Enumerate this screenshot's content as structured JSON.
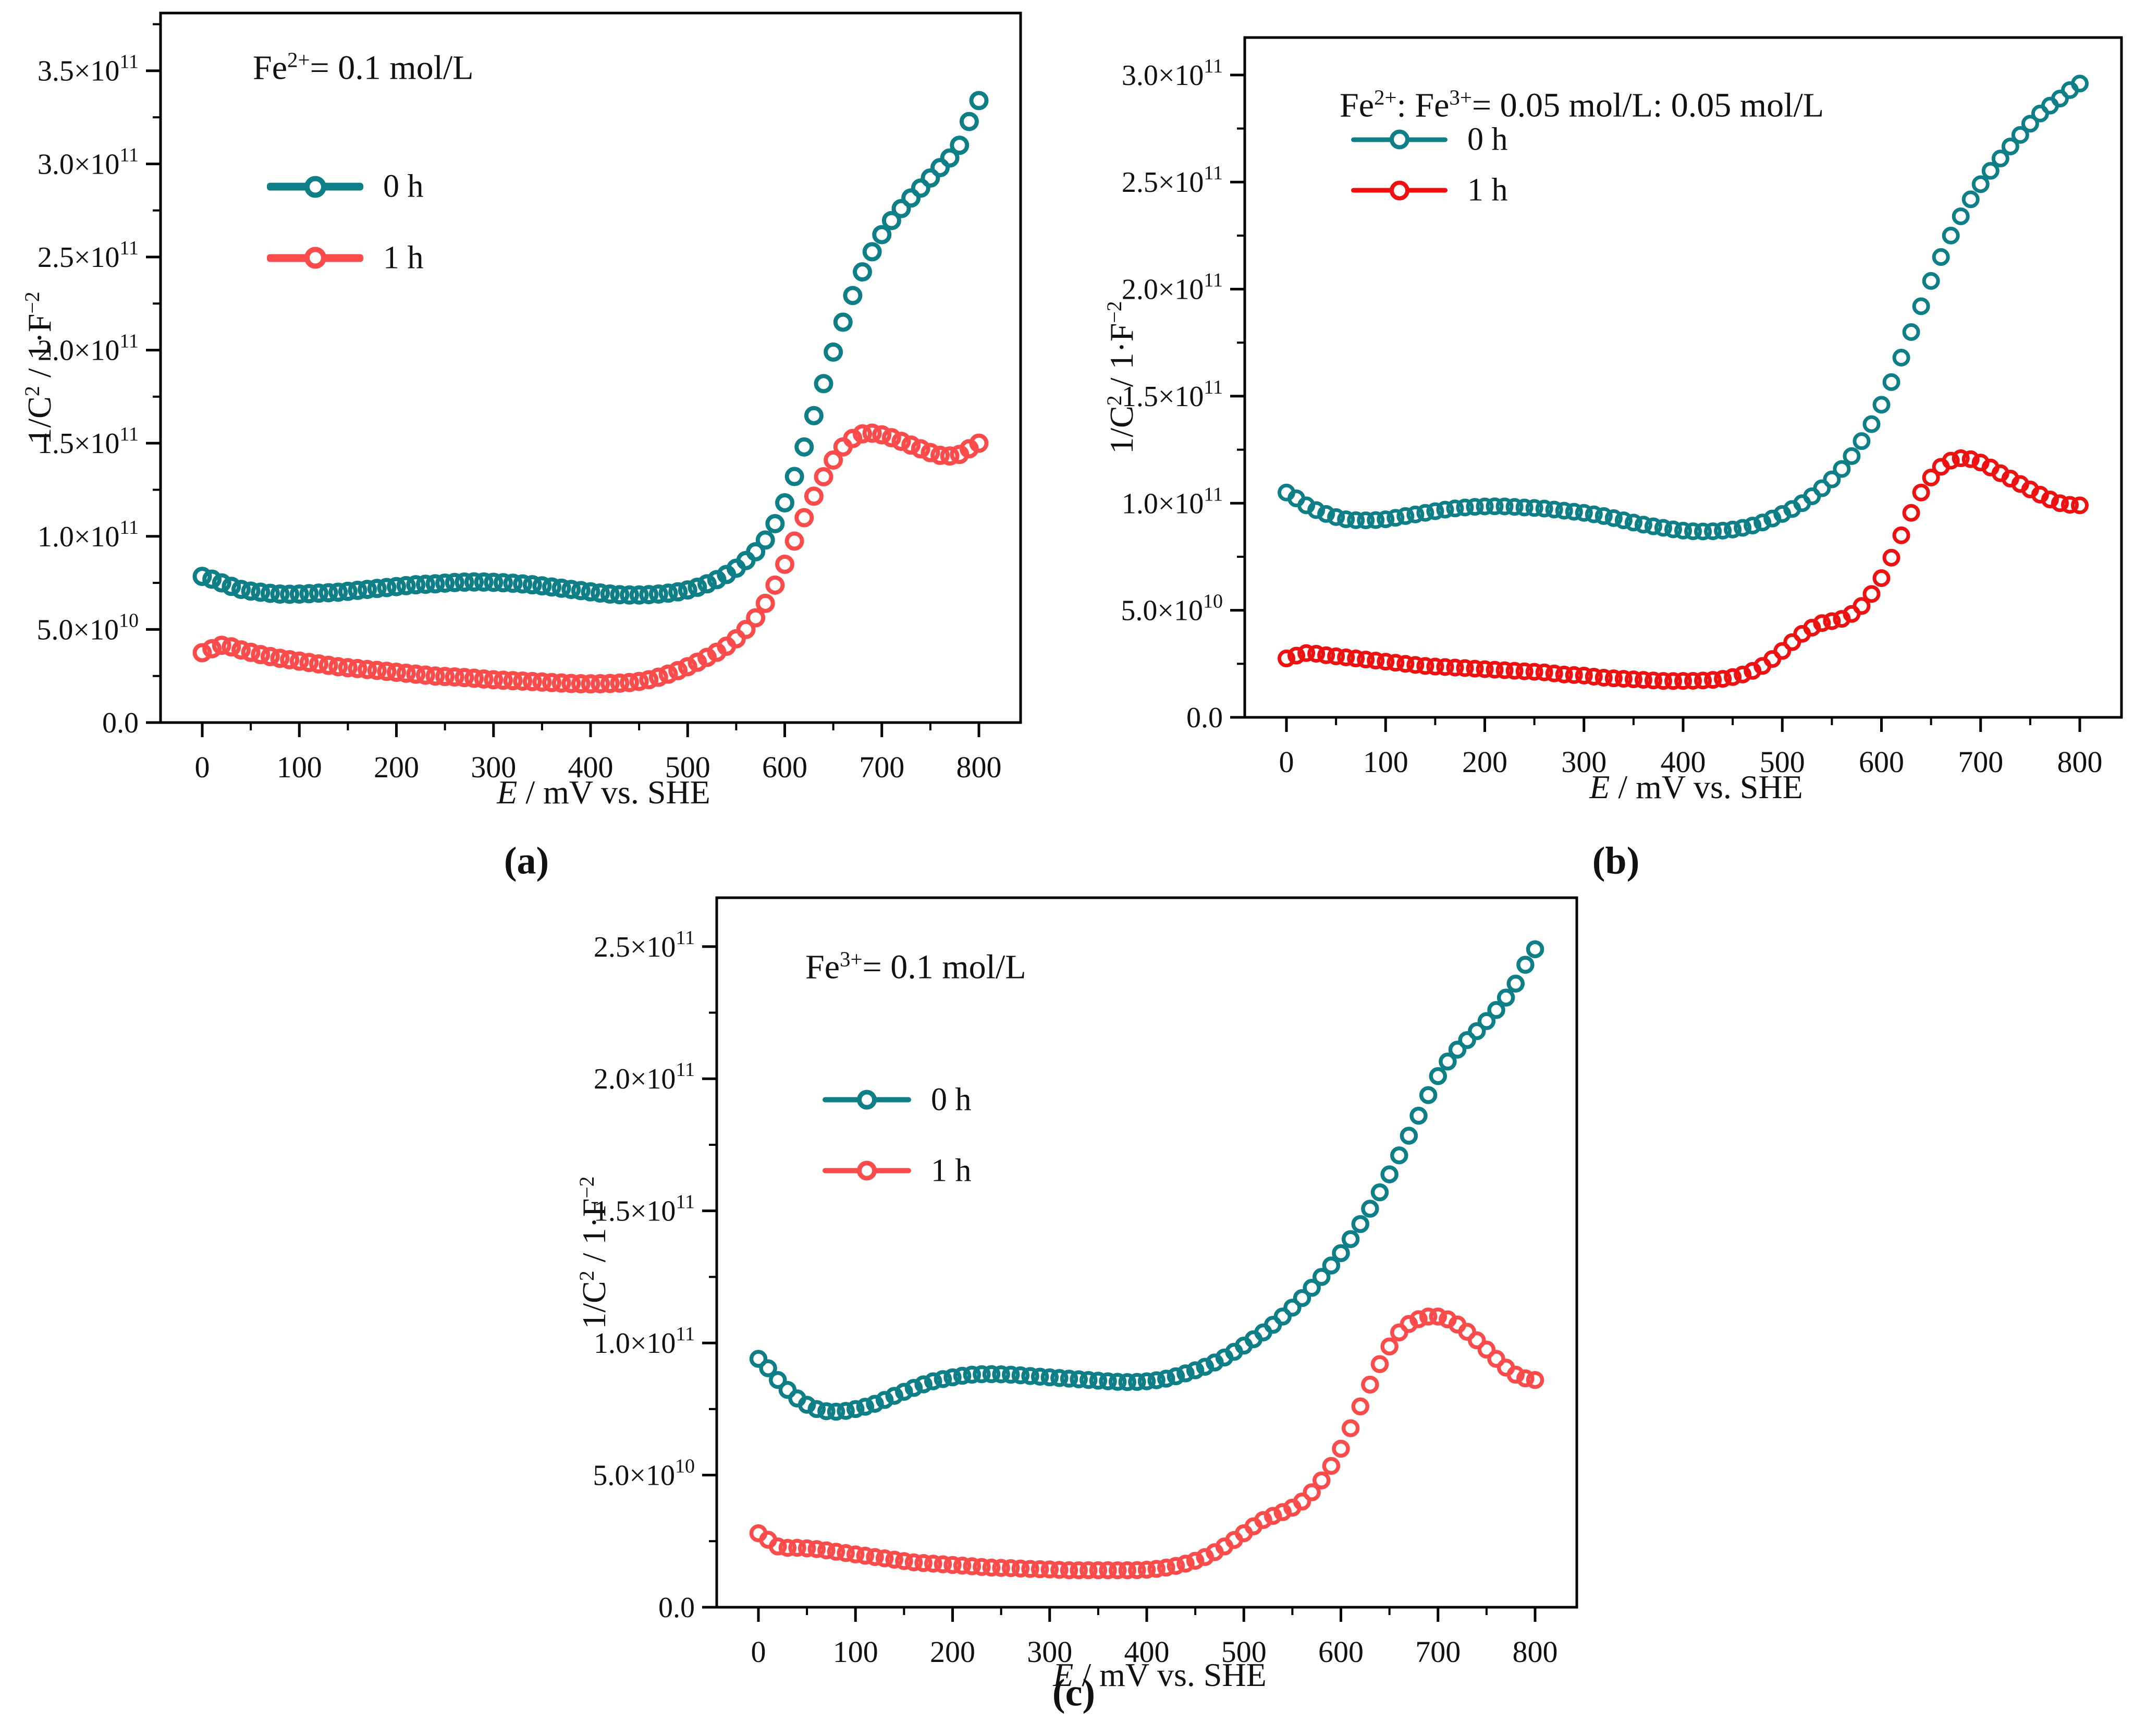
{
  "figure": {
    "ylabel": "1/C^{2} / 1·F^{−2}",
    "xlabel": "*E* / mV vs. SHE",
    "series_labels": [
      "0 h",
      "1 h"
    ],
    "colors": {
      "teal": "#0e7e87",
      "coral_red": "#fc4b4b",
      "pure_red": "#ee1111",
      "axis": "#000000"
    }
  },
  "chart_data": [
    {
      "id": "a",
      "type": "scatter",
      "caption": "(a)",
      "title": "Fe^{2+}= 0.1 mol/L",
      "xlabel": "*E* / mV vs. SHE",
      "xlim": [
        -45,
        845
      ],
      "x_ticks": [
        0,
        100,
        200,
        300,
        400,
        500,
        600,
        700,
        800
      ],
      "x_minor_step": 50,
      "ylim_1e10": [
        0,
        38.1
      ],
      "y_tick_values_1e10": [
        0,
        5,
        10,
        15,
        20,
        25,
        30,
        35
      ],
      "y_tick_labels": [
        "0.0",
        "5.0×10^{10}",
        "1.0×10^{11}",
        "1.5×10^{11}",
        "2.0×10^{11}",
        "2.5×10^{11}",
        "3.0×10^{11}",
        "3.5×10^{11}"
      ],
      "y_minor_step_1e10": 2.5,
      "x": [
        0,
        20,
        40,
        60,
        80,
        100,
        120,
        140,
        160,
        180,
        200,
        220,
        240,
        260,
        280,
        300,
        320,
        340,
        360,
        380,
        400,
        420,
        440,
        460,
        480,
        500,
        520,
        540,
        560,
        580,
        600,
        620,
        640,
        660,
        680,
        700,
        720,
        740,
        760,
        780,
        800
      ],
      "series": [
        {
          "name": "0 h",
          "color": "#0e7e87",
          "y_1e10": [
            7.85,
            7.5,
            7.15,
            7.0,
            6.9,
            6.9,
            6.95,
            7.0,
            7.1,
            7.2,
            7.3,
            7.4,
            7.45,
            7.52,
            7.55,
            7.53,
            7.48,
            7.4,
            7.28,
            7.15,
            7.02,
            6.9,
            6.85,
            6.87,
            6.95,
            7.12,
            7.45,
            7.95,
            8.7,
            9.8,
            11.8,
            14.8,
            18.2,
            21.5,
            24.2,
            26.2,
            27.6,
            28.7,
            29.8,
            31.0,
            33.4
          ]
        },
        {
          "name": "1 h",
          "color": "#fc4b4b",
          "y_1e10": [
            3.75,
            4.15,
            3.9,
            3.65,
            3.45,
            3.3,
            3.15,
            3.0,
            2.9,
            2.8,
            2.7,
            2.6,
            2.5,
            2.45,
            2.38,
            2.3,
            2.25,
            2.2,
            2.15,
            2.1,
            2.08,
            2.1,
            2.15,
            2.3,
            2.6,
            3.0,
            3.5,
            4.1,
            5.0,
            6.4,
            8.5,
            11.0,
            13.2,
            14.8,
            15.5,
            15.45,
            15.1,
            14.7,
            14.35,
            14.4,
            15.0
          ]
        }
      ]
    },
    {
      "id": "b",
      "type": "scatter",
      "caption": "(b)",
      "title": "Fe^{2+}: Fe^{3+}= 0.05 mol/L: 0.05 mol/L",
      "xlabel": "*E* / mV vs. SHE",
      "xlim": [
        -45,
        845
      ],
      "x_ticks": [
        0,
        100,
        200,
        300,
        400,
        500,
        600,
        700,
        800
      ],
      "x_minor_step": 50,
      "ylim_1e10": [
        0,
        31.75
      ],
      "y_tick_values_1e10": [
        0,
        5,
        10,
        15,
        20,
        25,
        30
      ],
      "y_tick_labels": [
        "0.0",
        "5.0×10^{10}",
        "1.0×10^{11}",
        "1.5×10^{11}",
        "2.0×10^{11}",
        "2.5×10^{11}",
        "3.0×10^{11}"
      ],
      "y_minor_step_1e10": 2.5,
      "x": [
        0,
        20,
        40,
        60,
        80,
        100,
        120,
        140,
        160,
        180,
        200,
        220,
        240,
        260,
        280,
        300,
        320,
        340,
        360,
        380,
        400,
        420,
        440,
        460,
        480,
        500,
        520,
        540,
        560,
        580,
        600,
        620,
        640,
        660,
        680,
        700,
        720,
        740,
        760,
        780,
        800
      ],
      "series": [
        {
          "name": "0 h",
          "color": "#0e7e87",
          "y_1e10": [
            10.5,
            9.9,
            9.5,
            9.25,
            9.2,
            9.25,
            9.4,
            9.55,
            9.7,
            9.8,
            9.85,
            9.85,
            9.8,
            9.75,
            9.65,
            9.55,
            9.4,
            9.2,
            9.0,
            8.85,
            8.72,
            8.68,
            8.72,
            8.85,
            9.1,
            9.5,
            10.0,
            10.7,
            11.6,
            12.9,
            14.6,
            16.8,
            19.2,
            21.5,
            23.4,
            24.9,
            26.1,
            27.2,
            28.2,
            28.9,
            29.6
          ]
        },
        {
          "name": "1 h",
          "color": "#ee1111",
          "y_1e10": [
            2.75,
            3.0,
            2.9,
            2.8,
            2.7,
            2.6,
            2.5,
            2.4,
            2.35,
            2.3,
            2.25,
            2.2,
            2.15,
            2.1,
            2.0,
            1.95,
            1.85,
            1.8,
            1.75,
            1.7,
            1.7,
            1.72,
            1.8,
            2.0,
            2.4,
            3.1,
            3.9,
            4.4,
            4.6,
            5.2,
            6.5,
            8.5,
            10.5,
            11.7,
            12.1,
            11.9,
            11.4,
            10.9,
            10.4,
            10.0,
            9.9
          ]
        }
      ]
    },
    {
      "id": "c",
      "type": "scatter",
      "caption": "(c)",
      "title": "Fe^{3+}= 0.1 mol/L",
      "xlabel": "*E* / mV vs. SHE",
      "xlim": [
        -45,
        845
      ],
      "x_ticks": [
        0,
        100,
        200,
        300,
        400,
        500,
        600,
        700,
        800
      ],
      "x_minor_step": 50,
      "ylim_1e10": [
        0,
        26.85
      ],
      "y_tick_values_1e10": [
        0,
        5,
        10,
        15,
        20,
        25
      ],
      "y_tick_labels": [
        "0.0",
        "5.0×10^{10}",
        "1.0×10^{11}",
        "1.5×10^{11}",
        "2.0×10^{11}",
        "2.5×10^{11}"
      ],
      "y_minor_step_1e10": 2.5,
      "x": [
        0,
        20,
        40,
        60,
        80,
        100,
        120,
        140,
        160,
        180,
        200,
        220,
        240,
        260,
        280,
        300,
        320,
        340,
        360,
        380,
        400,
        420,
        440,
        460,
        480,
        500,
        520,
        540,
        560,
        580,
        600,
        620,
        640,
        660,
        680,
        700,
        720,
        740,
        760,
        780,
        800
      ],
      "series": [
        {
          "name": "0 h",
          "color": "#0e7e87",
          "y_1e10": [
            9.4,
            8.6,
            7.9,
            7.5,
            7.4,
            7.5,
            7.7,
            8.0,
            8.3,
            8.55,
            8.7,
            8.8,
            8.82,
            8.8,
            8.75,
            8.7,
            8.65,
            8.6,
            8.55,
            8.52,
            8.55,
            8.65,
            8.85,
            9.1,
            9.45,
            9.9,
            10.4,
            11.0,
            11.7,
            12.5,
            13.4,
            14.5,
            15.7,
            17.1,
            18.6,
            20.1,
            21.1,
            21.8,
            22.6,
            23.6,
            24.9
          ]
        },
        {
          "name": "1 h",
          "color": "#fc4b4b",
          "y_1e10": [
            2.8,
            2.3,
            2.25,
            2.2,
            2.1,
            2.0,
            1.9,
            1.8,
            1.7,
            1.65,
            1.6,
            1.55,
            1.5,
            1.48,
            1.45,
            1.43,
            1.4,
            1.4,
            1.4,
            1.4,
            1.42,
            1.5,
            1.65,
            1.9,
            2.3,
            2.8,
            3.3,
            3.6,
            4.0,
            4.8,
            6.0,
            7.6,
            9.2,
            10.4,
            10.9,
            11.0,
            10.7,
            10.1,
            9.4,
            8.8,
            8.6
          ]
        }
      ]
    }
  ]
}
